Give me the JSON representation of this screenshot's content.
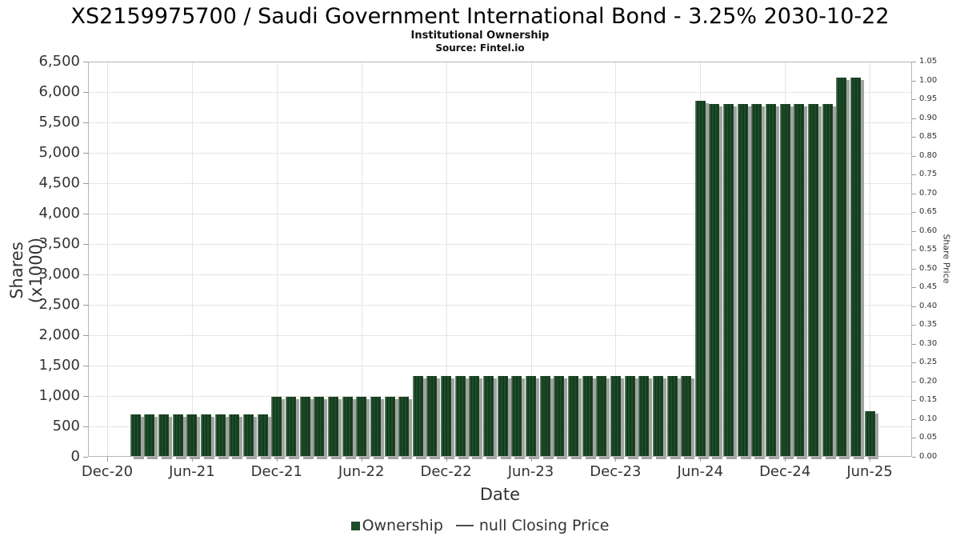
{
  "header": {
    "title": "XS2159975700 / Saudi Government International Bond - 3.25% 2030-10-22",
    "subtitle": "Institutional Ownership",
    "source": "Source: Fintel.io"
  },
  "legend": {
    "ownership_label": "Ownership",
    "price_label": "null Closing Price"
  },
  "colors": {
    "bar_green": "#1d4c28",
    "bar_stripe_dark": "#153a1d",
    "bar_shadow": "#a3a3a3",
    "grid": "#e4e4e4",
    "plot_border": "#b3b3b3",
    "tick": "#9a9a9a",
    "text": "#333333",
    "title_text": "#000000"
  },
  "chart_data": {
    "type": "bar",
    "title": "XS2159975700 / Saudi Government International Bond - 3.25% 2030-10-22",
    "subtitle": "Institutional Ownership",
    "source": "Source: Fintel.io",
    "xlabel": "Date",
    "ylabel_left": "Shares (x1000)",
    "ylabel_right": "Share Price",
    "ylim_left": [
      0,
      6500
    ],
    "ylim_right": [
      0,
      1.05
    ],
    "grid": true,
    "legend_position": "bottom",
    "x_ticks": [
      "Dec-20",
      "Jun-21",
      "Dec-21",
      "Jun-22",
      "Dec-22",
      "Jun-23",
      "Dec-23",
      "Jun-24",
      "Dec-24",
      "Jun-25"
    ],
    "y_ticks_left": [
      "0",
      "500",
      "1,000",
      "1,500",
      "2,000",
      "2,500",
      "3,000",
      "3,500",
      "4,000",
      "4,500",
      "5,000",
      "5,500",
      "6,000",
      "6,500"
    ],
    "y_ticks_right": [
      "0.00",
      "0.05",
      "0.10",
      "0.15",
      "0.20",
      "0.25",
      "0.30",
      "0.35",
      "0.40",
      "0.45",
      "0.50",
      "0.55",
      "0.60",
      "0.65",
      "0.70",
      "0.75",
      "0.80",
      "0.85",
      "0.90",
      "0.95",
      "1.00",
      "1.05"
    ],
    "series": [
      {
        "name": "Ownership",
        "unit": "shares x1000",
        "categories": [
          "Feb-21",
          "Mar-21",
          "Apr-21",
          "May-21",
          "Jun-21",
          "Jul-21",
          "Aug-21",
          "Sep-21",
          "Oct-21",
          "Nov-21",
          "Dec-21",
          "Jan-22",
          "Feb-22",
          "Mar-22",
          "Apr-22",
          "May-22",
          "Jun-22",
          "Jul-22",
          "Aug-22",
          "Sep-22",
          "Oct-22",
          "Nov-22",
          "Dec-22",
          "Jan-23",
          "Feb-23",
          "Mar-23",
          "Apr-23",
          "May-23",
          "Jun-23",
          "Jul-23",
          "Aug-23",
          "Sep-23",
          "Oct-23",
          "Nov-23",
          "Dec-23",
          "Jan-24",
          "Feb-24",
          "Mar-24",
          "Apr-24",
          "May-24",
          "Jun-24",
          "Jul-24",
          "Aug-24",
          "Sep-24",
          "Oct-24",
          "Nov-24",
          "Dec-24",
          "Jan-25",
          "Feb-25",
          "Mar-25",
          "Apr-25",
          "May-25",
          "Jun-25"
        ],
        "values": [
          700,
          700,
          700,
          700,
          700,
          700,
          700,
          700,
          700,
          700,
          990,
          990,
          990,
          990,
          990,
          990,
          990,
          990,
          990,
          990,
          1330,
          1330,
          1330,
          1330,
          1330,
          1330,
          1330,
          1330,
          1330,
          1330,
          1330,
          1330,
          1330,
          1330,
          1330,
          1330,
          1330,
          1330,
          1330,
          1330,
          5850,
          5800,
          5800,
          5800,
          5800,
          5800,
          5800,
          5800,
          5800,
          5800,
          6240,
          6240,
          750
        ]
      },
      {
        "name": "null Closing Price",
        "values": []
      }
    ]
  }
}
